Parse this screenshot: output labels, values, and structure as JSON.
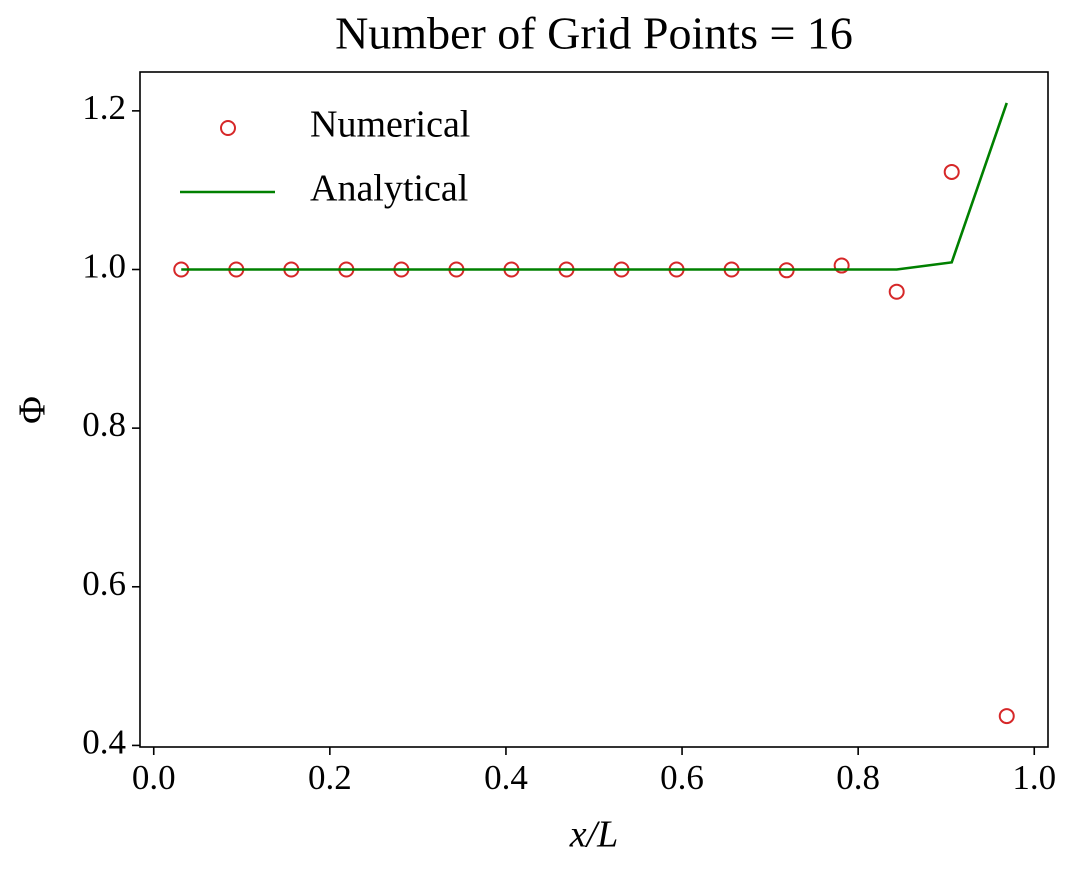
{
  "chart_data": {
    "type": "line",
    "title": "Number of Grid Points = 16",
    "xlabel": "x/L",
    "ylabel": "Φ",
    "x": [
      0.03125,
      0.09375,
      0.15625,
      0.21875,
      0.28125,
      0.34375,
      0.40625,
      0.46875,
      0.53125,
      0.59375,
      0.65625,
      0.71875,
      0.78125,
      0.84375,
      0.90625,
      0.96875
    ],
    "series": [
      {
        "name": "Numerical",
        "color": "#d62728",
        "mode": "markers",
        "values": [
          1.0,
          1.0,
          1.0,
          1.0,
          1.0,
          1.0,
          1.0,
          1.0,
          1.0,
          1.0,
          1.0,
          0.999,
          1.005,
          0.972,
          1.123,
          0.437
        ]
      },
      {
        "name": "Analytical",
        "color": "#008000",
        "mode": "line",
        "values": [
          1.0,
          1.0,
          1.0,
          1.0,
          1.0,
          1.0,
          1.0,
          1.0,
          1.0,
          1.0,
          1.0,
          1.0,
          1.0,
          1.0,
          1.009,
          1.21
        ]
      }
    ],
    "xlim": [
      -0.0156,
      1.0156
    ],
    "ylim": [
      0.398,
      1.249
    ],
    "xticks": [
      {
        "value": 0,
        "label": "0.0"
      },
      0.2,
      0.4,
      0.6,
      0.8,
      {
        "value": 1,
        "label": "1.0"
      }
    ],
    "yticks": [
      0.4,
      0.6,
      0.8,
      {
        "value": 1,
        "label": "1.0"
      },
      1.2
    ],
    "legend": "upper left",
    "grid": false
  }
}
